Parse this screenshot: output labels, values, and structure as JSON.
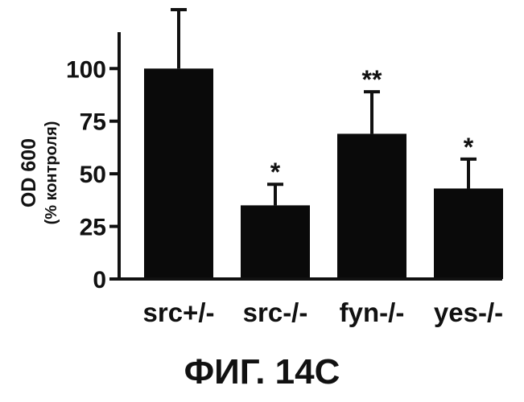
{
  "figure": {
    "caption": "ФИГ. 14С"
  },
  "chart_data": {
    "type": "bar",
    "categories": [
      "src+/-",
      "src-/-",
      "fyn-/-",
      "yes-/-"
    ],
    "values": [
      100,
      35,
      69,
      43
    ],
    "error": [
      28,
      10,
      20,
      14
    ],
    "significance": [
      "",
      "*",
      "**",
      "*"
    ],
    "title": "",
    "xlabel": "",
    "ylabel": "OD 600",
    "ylabel_sub": "(% контроля)",
    "yticks": [
      0,
      25,
      50,
      75,
      100
    ],
    "ylim": [
      0,
      128
    ],
    "grid": false,
    "colors": {
      "bar": "#0a0a0a",
      "axis": "#111111"
    }
  }
}
